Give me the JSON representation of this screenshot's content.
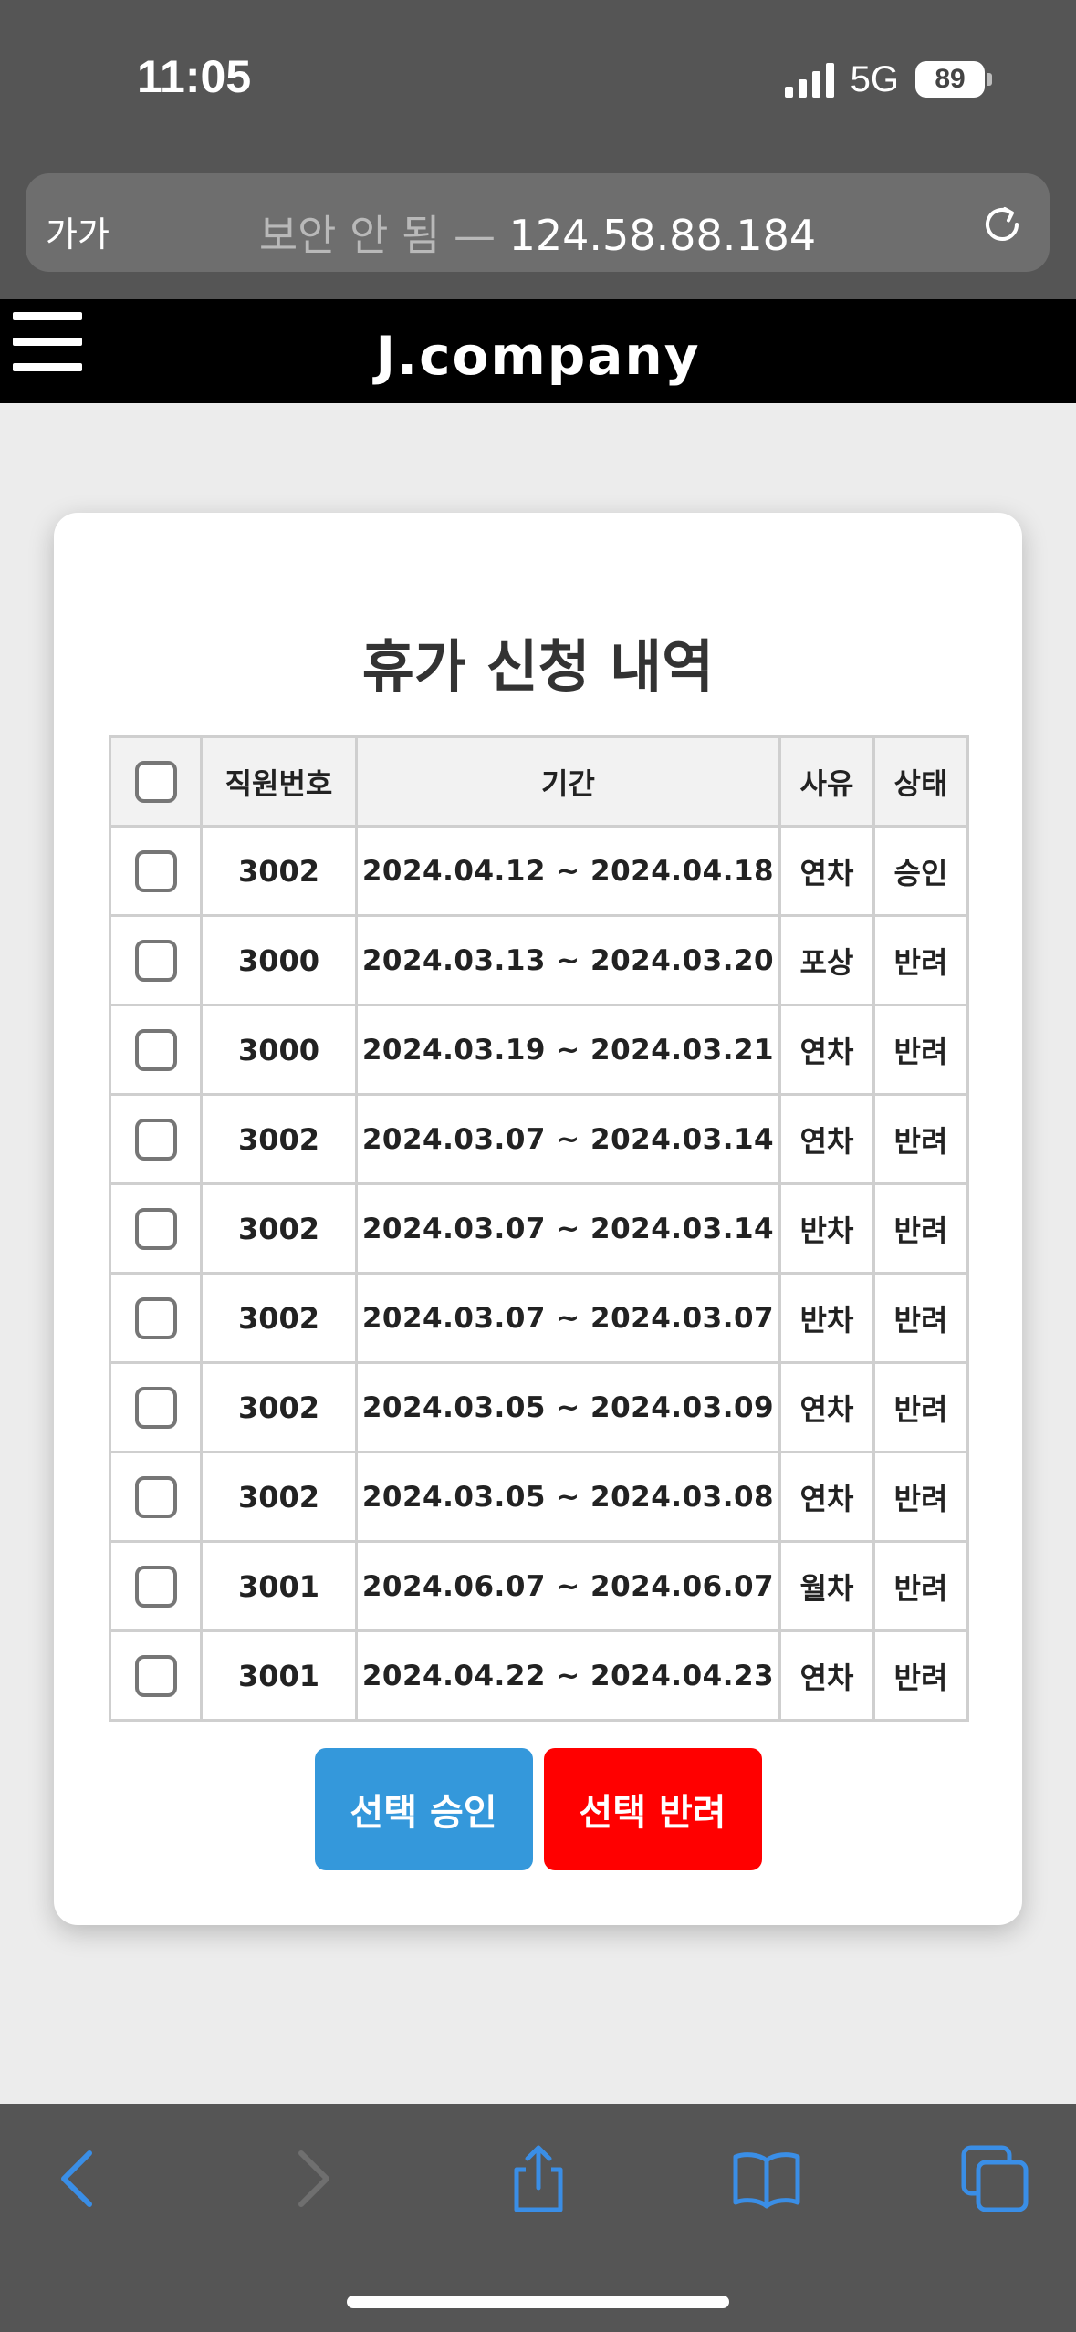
{
  "status": {
    "time": "11:05",
    "network": "5G",
    "battery": "89"
  },
  "browser": {
    "aa_label": "가가",
    "url_insecure": "보안 안 됨 —",
    "url_host": "124.58.88.184"
  },
  "site": {
    "brand": "J.company"
  },
  "page": {
    "title": "휴가 신청 내역",
    "columns": {
      "id": "직원번호",
      "period": "기간",
      "reason": "사유",
      "status": "상태"
    },
    "rows": [
      {
        "id": "3002",
        "period": "2024.04.12 ~ 2024.04.18",
        "reason": "연차",
        "status": "승인"
      },
      {
        "id": "3000",
        "period": "2024.03.13 ~ 2024.03.20",
        "reason": "포상",
        "status": "반려"
      },
      {
        "id": "3000",
        "period": "2024.03.19 ~ 2024.03.21",
        "reason": "연차",
        "status": "반려"
      },
      {
        "id": "3002",
        "period": "2024.03.07 ~ 2024.03.14",
        "reason": "연차",
        "status": "반려"
      },
      {
        "id": "3002",
        "period": "2024.03.07 ~ 2024.03.14",
        "reason": "반차",
        "status": "반려"
      },
      {
        "id": "3002",
        "period": "2024.03.07 ~ 2024.03.07",
        "reason": "반차",
        "status": "반려"
      },
      {
        "id": "3002",
        "period": "2024.03.05 ~ 2024.03.09",
        "reason": "연차",
        "status": "반려"
      },
      {
        "id": "3002",
        "period": "2024.03.05 ~ 2024.03.08",
        "reason": "연차",
        "status": "반려"
      },
      {
        "id": "3001",
        "period": "2024.06.07 ~ 2024.06.07",
        "reason": "월차",
        "status": "반려"
      },
      {
        "id": "3001",
        "period": "2024.04.22 ~ 2024.04.23",
        "reason": "연차",
        "status": "반려"
      }
    ],
    "approve_label": "선택 승인",
    "reject_label": "선택 반려"
  },
  "colors": {
    "approve": "#3498db",
    "reject": "#ff0000",
    "browser_chrome": "#555555",
    "toolbar_icons": "#3a8ee6"
  }
}
